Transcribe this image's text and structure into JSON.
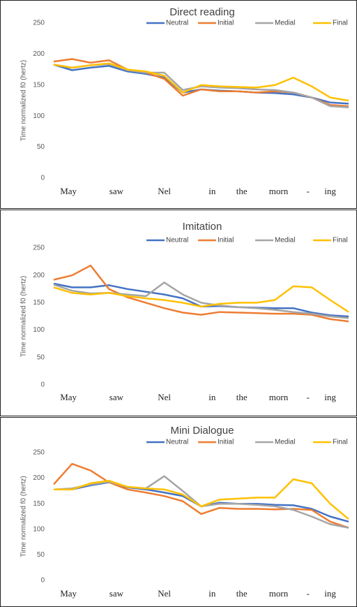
{
  "chart_data": [
    {
      "type": "line",
      "title": "Direct reading",
      "y_label": "Time normalized f0 (hertz)",
      "x": [
        0,
        0.5,
        1,
        1.5,
        2,
        2.5,
        3,
        3.5,
        4,
        4.5,
        5,
        5.5,
        6,
        6.5,
        7,
        7.5,
        8
      ],
      "xlim": [
        0,
        8
      ],
      "xticks": [
        {
          "value": 0.4,
          "label": "May"
        },
        {
          "value": 1.7,
          "label": "saw"
        },
        {
          "value": 3.0,
          "label": "Nel"
        },
        {
          "value": 4.3,
          "label": "in"
        },
        {
          "value": 5.1,
          "label": "the"
        },
        {
          "value": 6.1,
          "label": "morn"
        },
        {
          "value": 6.9,
          "label": "-"
        },
        {
          "value": 7.5,
          "label": "ing"
        }
      ],
      "ylim": [
        0,
        250
      ],
      "yticks": [
        0,
        50,
        100,
        150,
        200,
        250
      ],
      "grid": false,
      "series": [
        {
          "name": "Neutral",
          "color": "#4472c4",
          "values": [
            183,
            174,
            178,
            181,
            172,
            168,
            162,
            138,
            143,
            141,
            140,
            138,
            137,
            135,
            130,
            122,
            120
          ]
        },
        {
          "name": "Initial",
          "color": "#ed7d31",
          "values": [
            188,
            192,
            186,
            190,
            175,
            170,
            160,
            133,
            143,
            140,
            140,
            138,
            140,
            138,
            130,
            118,
            116
          ]
        },
        {
          "name": "Medial",
          "color": "#a5a5a5",
          "values": [
            183,
            178,
            182,
            184,
            174,
            170,
            170,
            142,
            148,
            146,
            145,
            143,
            142,
            138,
            130,
            116,
            114
          ]
        },
        {
          "name": "Final",
          "color": "#ffc000",
          "values": [
            183,
            178,
            182,
            185,
            175,
            172,
            165,
            138,
            150,
            148,
            147,
            146,
            150,
            162,
            148,
            130,
            125
          ]
        }
      ]
    },
    {
      "type": "line",
      "title": "Imitation",
      "y_label": "Time normalized f0 (hertz)",
      "x": [
        0,
        0.5,
        1,
        1.5,
        2,
        2.5,
        3,
        3.5,
        4,
        4.5,
        5,
        5.5,
        6,
        6.5,
        7,
        7.5,
        8
      ],
      "xlim": [
        0,
        8
      ],
      "xticks": [
        {
          "value": 0.4,
          "label": "May"
        },
        {
          "value": 1.7,
          "label": "saw"
        },
        {
          "value": 3.0,
          "label": "Nel"
        },
        {
          "value": 4.3,
          "label": "in"
        },
        {
          "value": 5.1,
          "label": "the"
        },
        {
          "value": 6.1,
          "label": "morn"
        },
        {
          "value": 6.9,
          "label": "-"
        },
        {
          "value": 7.5,
          "label": "ing"
        }
      ],
      "ylim": [
        0,
        250
      ],
      "yticks": [
        0,
        50,
        100,
        150,
        200,
        250
      ],
      "grid": false,
      "series": [
        {
          "name": "Neutral",
          "color": "#4472c4",
          "values": [
            185,
            178,
            178,
            182,
            175,
            170,
            165,
            158,
            143,
            144,
            142,
            141,
            140,
            140,
            132,
            127,
            125
          ]
        },
        {
          "name": "Initial",
          "color": "#ed7d31",
          "values": [
            192,
            200,
            218,
            175,
            160,
            150,
            140,
            132,
            128,
            133,
            132,
            131,
            130,
            130,
            128,
            120,
            116
          ]
        },
        {
          "name": "Medial",
          "color": "#a5a5a5",
          "values": [
            183,
            172,
            167,
            168,
            165,
            162,
            187,
            165,
            150,
            145,
            142,
            140,
            137,
            133,
            130,
            125,
            122
          ]
        },
        {
          "name": "Final",
          "color": "#ffc000",
          "values": [
            178,
            168,
            165,
            168,
            162,
            158,
            155,
            150,
            143,
            148,
            150,
            150,
            155,
            180,
            178,
            155,
            133
          ]
        }
      ]
    },
    {
      "type": "line",
      "title": "Mini Dialogue",
      "y_label": "Time normalized f0 (hertz)",
      "x": [
        0,
        0.5,
        1,
        1.5,
        2,
        2.5,
        3,
        3.5,
        4,
        4.5,
        5,
        5.5,
        6,
        6.5,
        7,
        7.5,
        8
      ],
      "xlim": [
        0,
        8
      ],
      "xticks": [
        {
          "value": 0.4,
          "label": "May"
        },
        {
          "value": 1.7,
          "label": "saw"
        },
        {
          "value": 3.0,
          "label": "Nel"
        },
        {
          "value": 4.3,
          "label": "in"
        },
        {
          "value": 5.1,
          "label": "the"
        },
        {
          "value": 6.1,
          "label": "morn"
        },
        {
          "value": 6.9,
          "label": "-"
        },
        {
          "value": 7.5,
          "label": "ing"
        }
      ],
      "ylim": [
        0,
        250
      ],
      "yticks": [
        0,
        50,
        100,
        150,
        200,
        250
      ],
      "grid": false,
      "series": [
        {
          "name": "Neutral",
          "color": "#4472c4",
          "values": [
            178,
            178,
            186,
            192,
            182,
            178,
            172,
            165,
            145,
            152,
            150,
            150,
            148,
            147,
            140,
            125,
            115
          ]
        },
        {
          "name": "Initial",
          "color": "#ed7d31",
          "values": [
            188,
            228,
            215,
            192,
            178,
            172,
            165,
            155,
            130,
            142,
            140,
            140,
            139,
            140,
            138,
            115,
            103
          ]
        },
        {
          "name": "Medial",
          "color": "#a5a5a5",
          "values": [
            178,
            180,
            188,
            193,
            183,
            180,
            204,
            175,
            145,
            150,
            150,
            148,
            145,
            138,
            125,
            110,
            103
          ]
        },
        {
          "name": "Final",
          "color": "#ffc000",
          "values": [
            178,
            178,
            190,
            195,
            183,
            180,
            178,
            168,
            145,
            158,
            160,
            162,
            162,
            198,
            190,
            150,
            120
          ]
        }
      ]
    }
  ]
}
